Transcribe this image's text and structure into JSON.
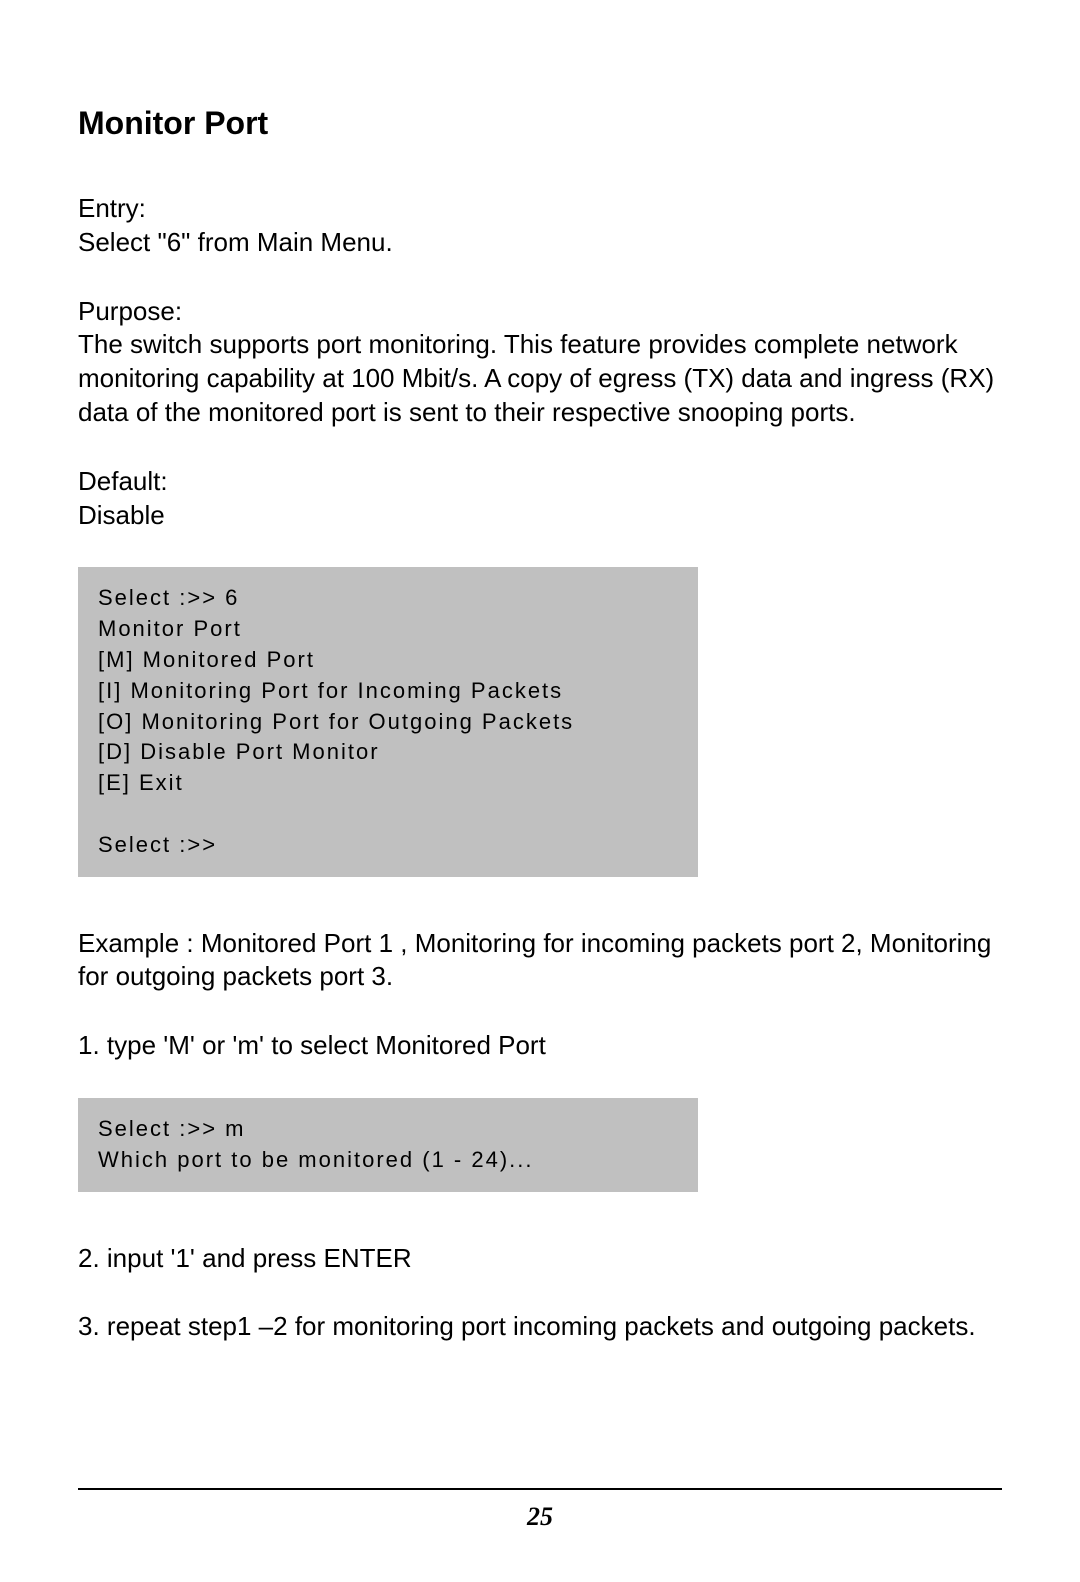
{
  "title": "Monitor Port",
  "entry": {
    "label": "Entry:",
    "text": "Select \"6\" from Main Menu."
  },
  "purpose": {
    "label": "Purpose:",
    "text": "The switch supports port monitoring. This feature provides complete network monitoring capability at 100 Mbit/s. A copy of egress (TX) data and ingress (RX) data of the monitored port is sent to their respective snooping ports."
  },
  "default": {
    "label": "Default:",
    "text": "Disable"
  },
  "codeBlock1": "Select :>> 6\nMonitor Port\n[M] Monitored Port\n[I] Monitoring Port for Incoming Packets\n[O] Monitoring Port for Outgoing Packets\n[D] Disable Port Monitor\n[E] Exit\n\nSelect :>>",
  "example": "Example : Monitored Port 1 , Monitoring for incoming packets port 2, Monitoring for outgoing packets port 3.",
  "step1": "1. type 'M' or 'm' to select Monitored Port",
  "codeBlock2": "Select :>> m\nWhich port to be monitored (1 - 24)...",
  "step2": "2. input '1' and press ENTER",
  "step3": "3. repeat step1 –2 for monitoring port incoming packets and outgoing packets.",
  "pageNumber": "25",
  "colors": {
    "background": "#ffffff",
    "text": "#000000",
    "codeBlockBg": "#c0c0c0",
    "footerLine": "#000000"
  },
  "typography": {
    "titleFontSize": 32,
    "bodyFontSize": 26,
    "codeFontSize": 22,
    "pageNumberFontSize": 26
  }
}
